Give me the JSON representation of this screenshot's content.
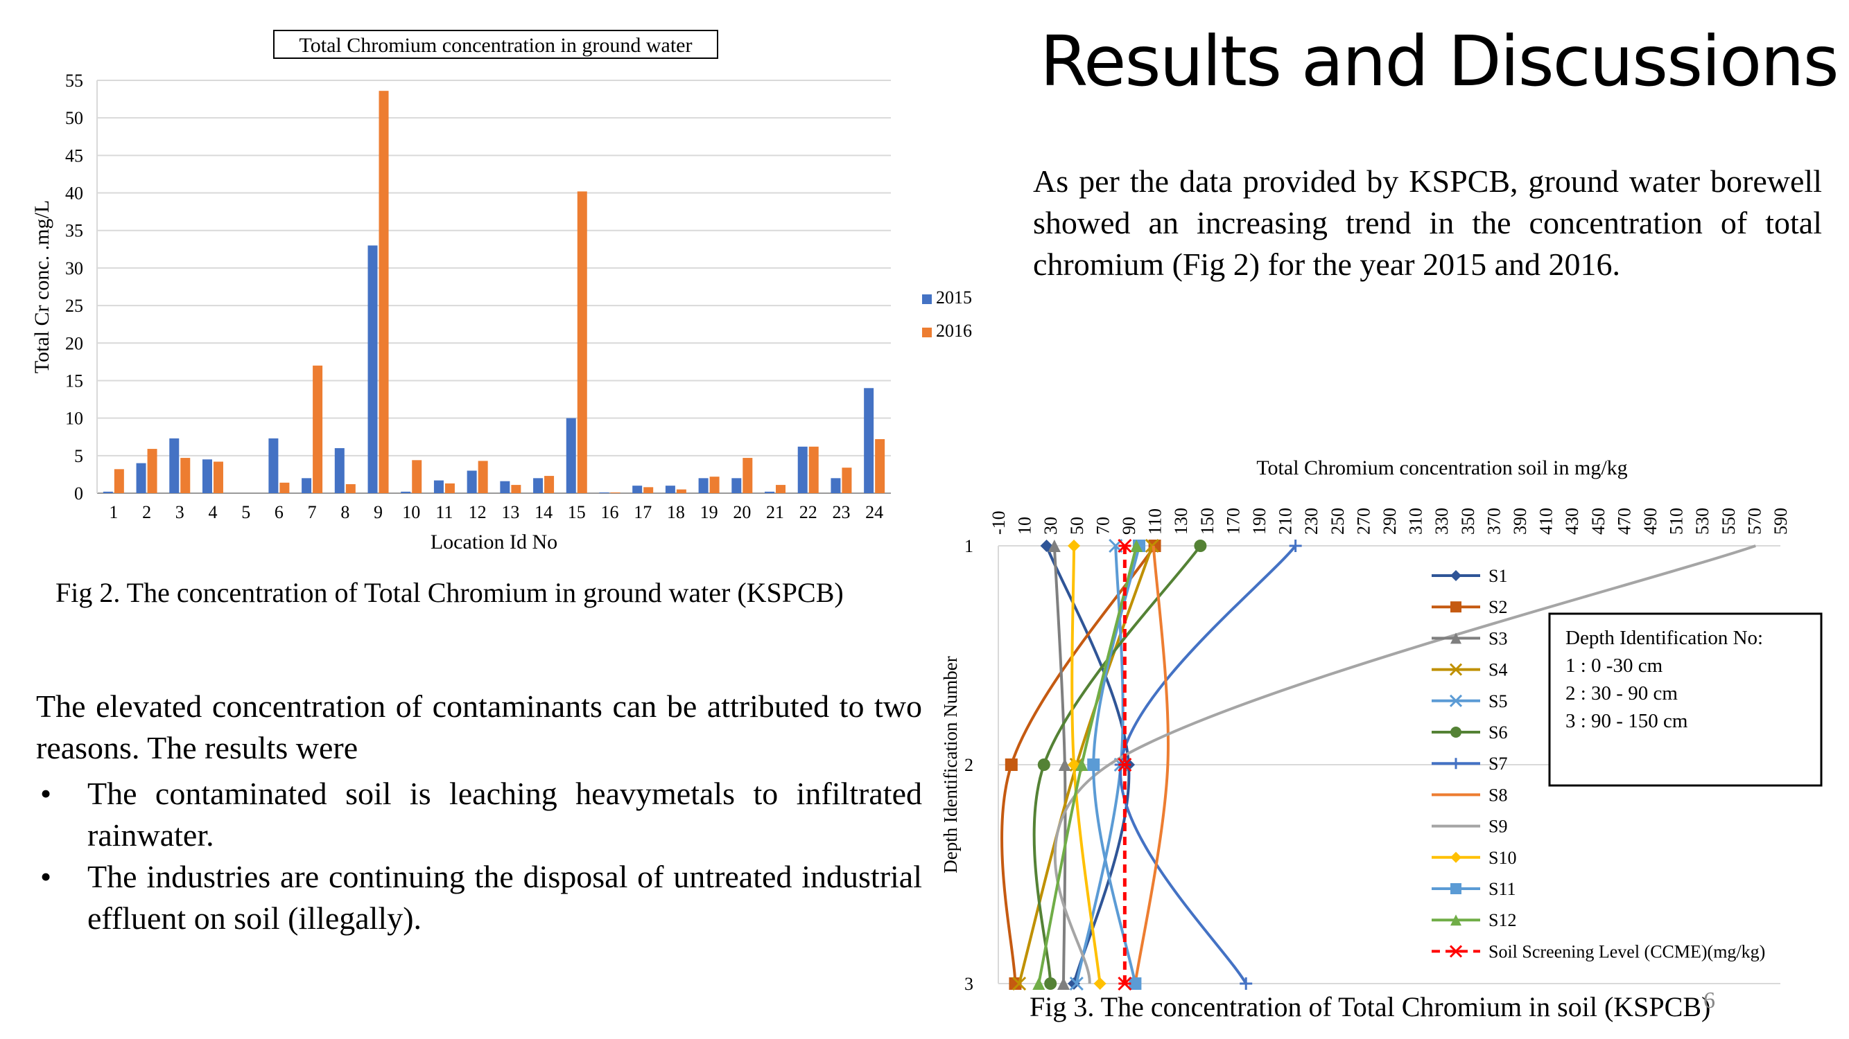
{
  "slide": {
    "title": "Results and Discussions",
    "paragraph_right": "As per the data provided by KSPCB, ground water borewell showed an increasing trend in the concentration of total chromium (Fig 2) for the year 2015 and 2016.",
    "paragraph_left": "The elevated concentration of contaminants can be attributed to two reasons. The results were",
    "bullets": [
      "The contaminated soil is leaching heavymetals to infiltrated rainwater.",
      "The industries are continuing the disposal of untreated industrial effluent on soil (illegally)."
    ],
    "bullet_glyph": "•",
    "fig2_caption": "Fig 2. The concentration of Total Chromium in ground water (KSPCB)",
    "fig3_caption": "Fig 3. The concentration of Total Chromium in soil (KSPCB)",
    "page_number": "6"
  },
  "chart_data": [
    {
      "type": "bar",
      "title": "Total Chromium concentration in ground water",
      "xlabel": "Location Id No",
      "ylabel": "Total Cr conc. .mg/L",
      "ylim": [
        0,
        55
      ],
      "yticks": [
        0,
        5,
        10,
        15,
        20,
        25,
        30,
        35,
        40,
        45,
        50,
        55
      ],
      "grid": true,
      "legend": "right",
      "categories": [
        "1",
        "2",
        "3",
        "4",
        "5",
        "6",
        "7",
        "8",
        "9",
        "10",
        "11",
        "12",
        "13",
        "14",
        "15",
        "16",
        "17",
        "18",
        "19",
        "20",
        "21",
        "22",
        "23",
        "24"
      ],
      "series": [
        {
          "name": "2015",
          "color": "#4472C4",
          "values": [
            0.2,
            4.0,
            7.3,
            4.5,
            0,
            7.3,
            2.0,
            6.0,
            33.0,
            0.2,
            1.7,
            3.0,
            1.6,
            2.0,
            10.0,
            0.1,
            1.0,
            1.0,
            2.0,
            2.0,
            0.2,
            6.2,
            2.0,
            14.0
          ]
        },
        {
          "name": "2016",
          "color": "#ED7D31",
          "values": [
            3.2,
            5.9,
            4.7,
            4.2,
            0,
            1.4,
            17.0,
            1.2,
            53.6,
            4.4,
            1.3,
            4.3,
            1.1,
            2.3,
            40.2,
            0.1,
            0.8,
            0.5,
            2.2,
            4.7,
            1.1,
            6.2,
            3.4,
            7.2
          ]
        }
      ]
    },
    {
      "type": "line",
      "title": "Total Chromium concentration soil in mg/kg",
      "xlabel": "",
      "ylabel": "Depth Identification Number",
      "xlim": [
        -10,
        590
      ],
      "xticks": [
        -10,
        10,
        30,
        50,
        70,
        90,
        110,
        130,
        150,
        170,
        190,
        210,
        230,
        250,
        270,
        290,
        310,
        330,
        350,
        370,
        390,
        410,
        430,
        450,
        470,
        490,
        510,
        530,
        550,
        570,
        590
      ],
      "yticks": [
        1,
        2,
        3
      ],
      "x_axis_position": "top",
      "y_reversed": true,
      "grid": true,
      "legend": "right",
      "series": [
        {
          "name": "S1",
          "color": "#2F5597",
          "marker": "diamond",
          "x": [
            27,
            90,
            48
          ],
          "y": [
            1,
            2,
            3
          ]
        },
        {
          "name": "S2",
          "color": "#C55A11",
          "marker": "square",
          "x": [
            110,
            0,
            3
          ],
          "y": [
            1,
            2,
            3
          ]
        },
        {
          "name": "S3",
          "color": "#7F7F7F",
          "marker": "triangle",
          "x": [
            33,
            41,
            40
          ],
          "y": [
            1,
            2,
            3
          ]
        },
        {
          "name": "S4",
          "color": "#BF9000",
          "marker": "x",
          "x": [
            108,
            50,
            6
          ],
          "y": [
            1,
            2,
            3
          ]
        },
        {
          "name": "S5",
          "color": "#5B9BD5",
          "marker": "x",
          "x": [
            80,
            84,
            50
          ],
          "y": [
            1,
            2,
            3
          ]
        },
        {
          "name": "S6",
          "color": "#548235",
          "marker": "circle",
          "x": [
            145,
            25,
            30
          ],
          "y": [
            1,
            2,
            3
          ]
        },
        {
          "name": "S7",
          "color": "#4472C4",
          "marker": "plus",
          "x": [
            218,
            84,
            180
          ],
          "y": [
            1,
            2,
            3
          ]
        },
        {
          "name": "S8",
          "color": "#ED7D31",
          "marker": "none",
          "x": [
            109,
            120,
            95
          ],
          "y": [
            1,
            2,
            3
          ]
        },
        {
          "name": "S9",
          "color": "#A5A5A5",
          "marker": "none",
          "x": [
            571,
            75,
            60
          ],
          "y": [
            1,
            2,
            3
          ]
        },
        {
          "name": "S10",
          "color": "#FFC000",
          "marker": "diamond",
          "x": [
            48,
            48,
            68
          ],
          "y": [
            1,
            2,
            3
          ]
        },
        {
          "name": "S11",
          "color": "#5B9BD5",
          "marker": "square",
          "x": [
            98,
            63,
            95
          ],
          "y": [
            1,
            2,
            3
          ]
        },
        {
          "name": "S12",
          "color": "#70AD47",
          "marker": "triangle",
          "x": [
            96,
            54,
            21
          ],
          "y": [
            1,
            2,
            3
          ]
        },
        {
          "name": "Soil Screening Level (CCME)(mg/kg)",
          "color": "#FF0000",
          "marker": "star",
          "dashed": true,
          "x": [
            87,
            87,
            87
          ],
          "y": [
            1,
            2,
            3
          ]
        }
      ],
      "annotation_box": {
        "title": "Depth Identification No:",
        "lines": [
          "1  : 0 -30 cm",
          "2  : 30 - 90 cm",
          "3  : 90 - 150 cm"
        ]
      }
    }
  ]
}
